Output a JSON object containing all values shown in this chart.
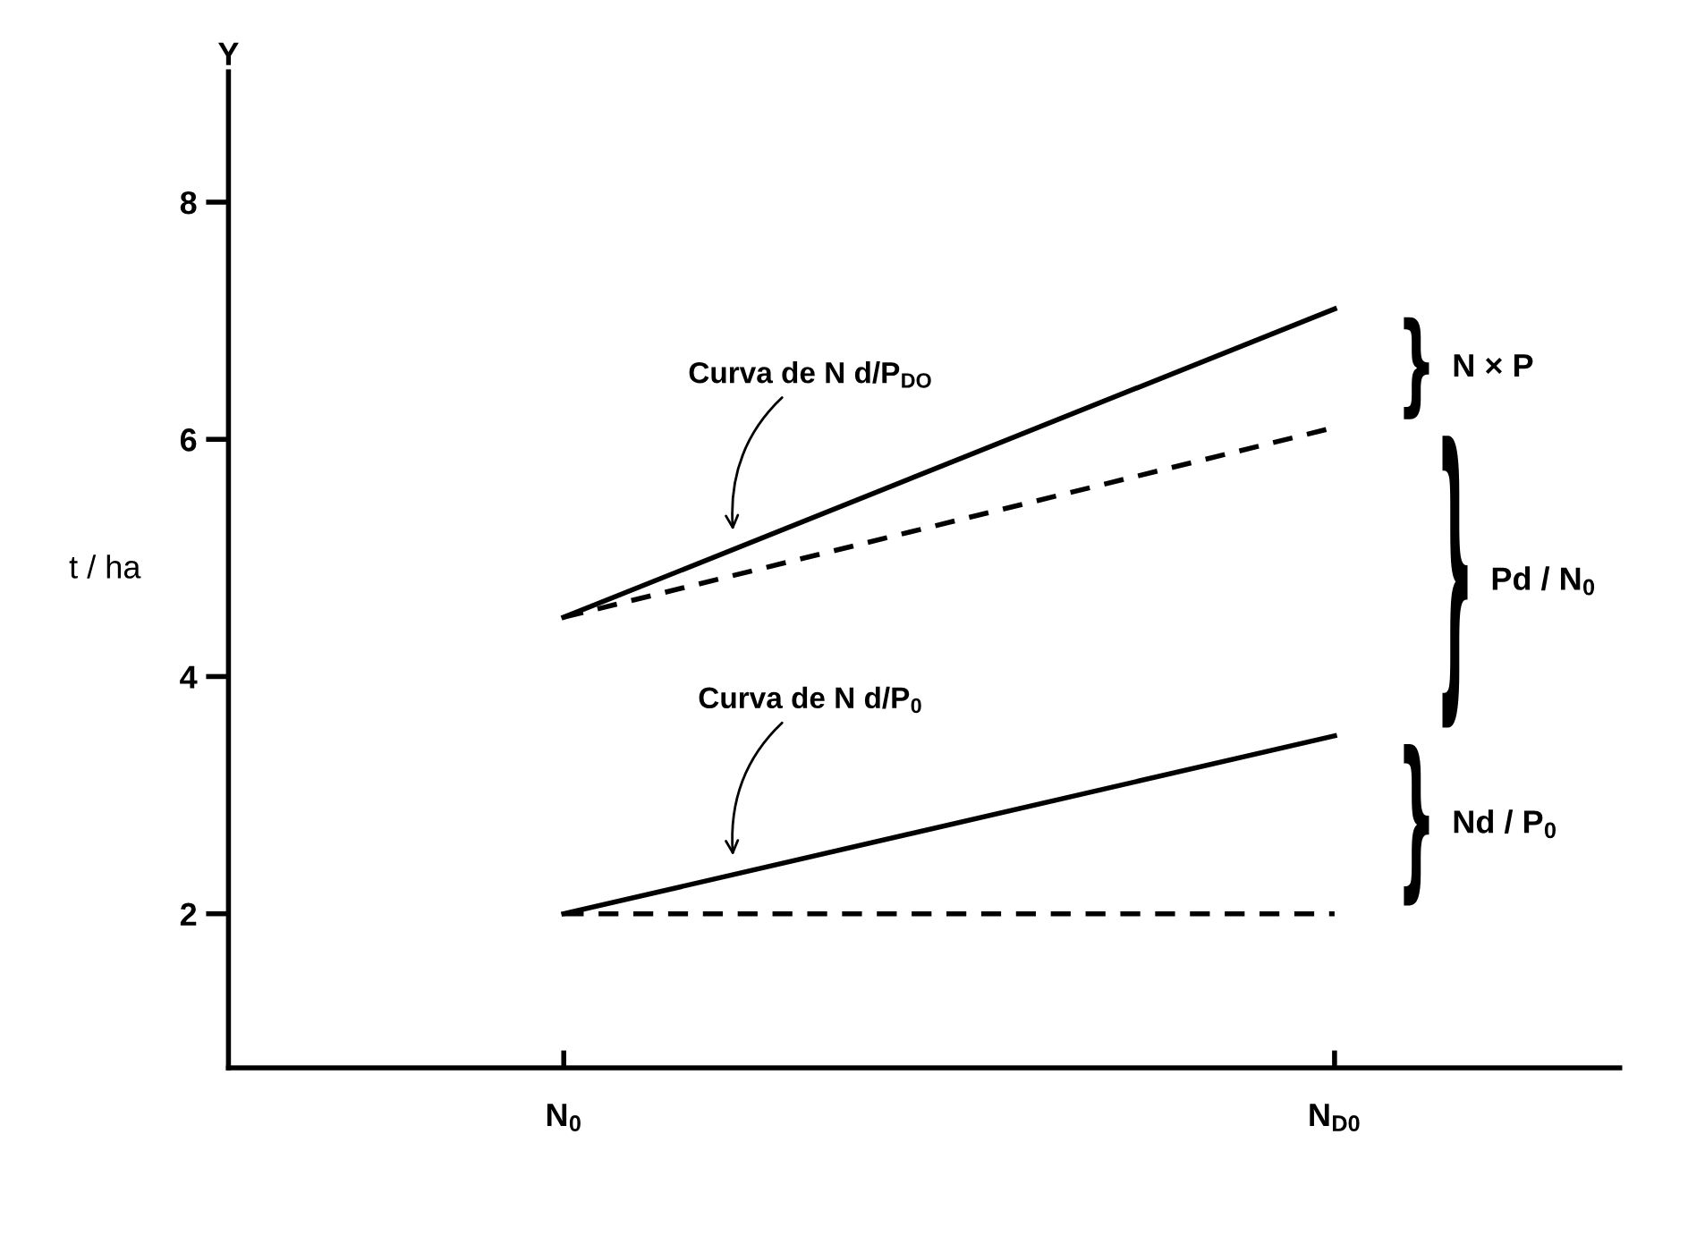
{
  "chart_data": {
    "type": "line",
    "xlabel": null,
    "ylabel": "t / ha",
    "categories": [
      "N$_{0}$",
      "N$_{D0}$"
    ],
    "series": [
      {
        "color": "#000000",
        "line_style": "solid",
        "values": [
          4.5,
          7.1
        ]
      },
      {
        "color": "#000000",
        "line_style": "dashed",
        "values": [
          4.5,
          6.1
        ]
      },
      {
        "color": "#000000",
        "line_style": "solid",
        "values": [
          2.0,
          3.5
        ]
      },
      {
        "color": "#000000",
        "line_style": "dashed",
        "values": [
          2.0,
          2.0
        ]
      }
    ],
    "ylim": [
      0.7,
      9.1
    ],
    "yticks": [
      2,
      4,
      6,
      8
    ],
    "marker": "none",
    "annotations": [
      "Y",
      "Curva de N d/P$_{DO}$",
      "Curva de N d/P$_{0}$",
      "N × P",
      "Pd / N$_{0}$",
      "Nd / P$_{0}$"
    ]
  }
}
